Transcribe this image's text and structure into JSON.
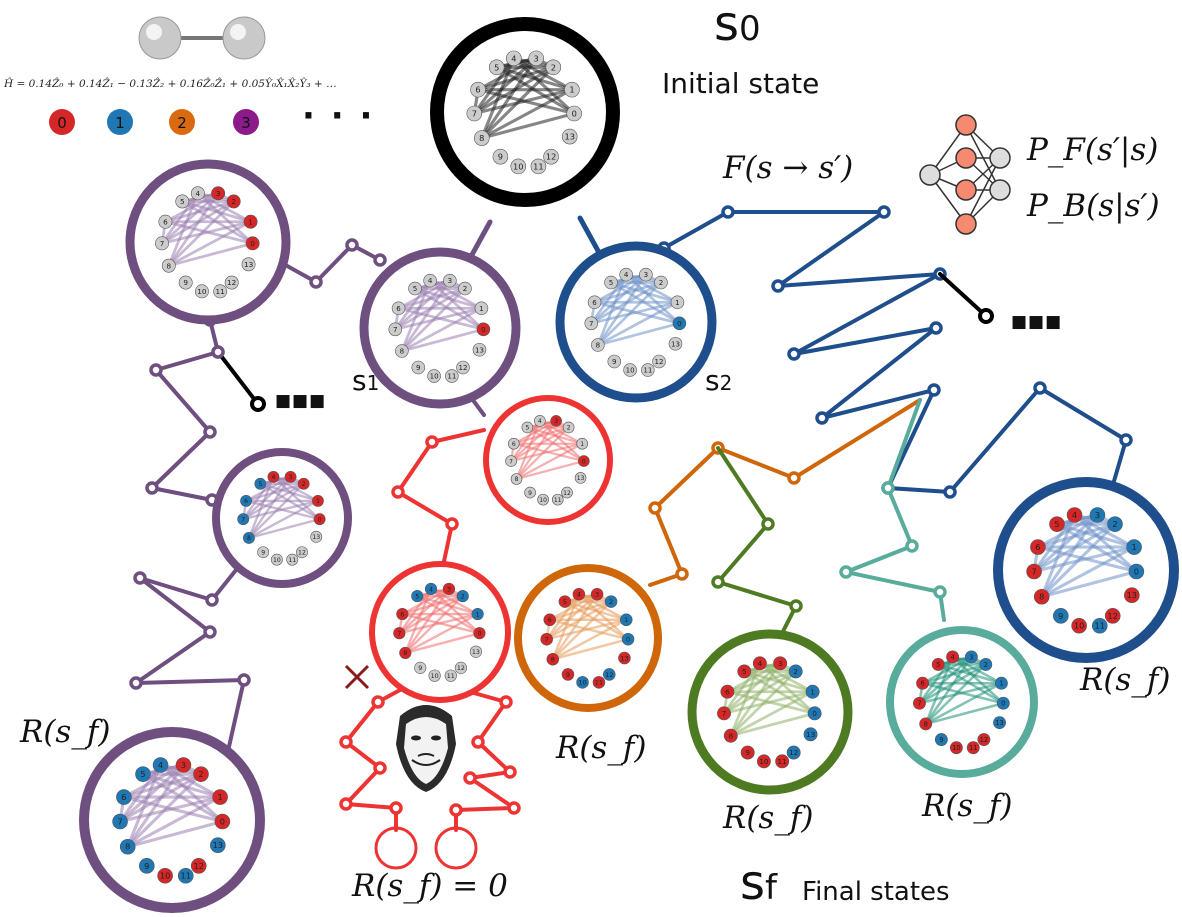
{
  "labels": {
    "s0": "s",
    "s0_sub": "0",
    "initial_state": "Initial state",
    "s1": "s",
    "s1_sub": "1",
    "s2": "s",
    "s2_sub": "2",
    "sf": "s",
    "sf_sub": "f",
    "final_states": "Final states",
    "flow": "F(s → s′)",
    "pf": "P_F(s′|s)",
    "pb": "P_B(s|s′)",
    "reward": "R(s_f)",
    "reward_zero": "R(s_f) = 0",
    "hamiltonian": "Ĥ = 0.14Ẑ₀ + 0.14Ẑ₁ − 0.13Ẑ₂ + 0.16Ẑ₀Ẑ₁ + 0.05Ŷ₀X̂₁X̂₂Ŷ₃ + …",
    "ellipsis": "■■■",
    "dots_legend": "· · ·"
  },
  "legend": [
    {
      "label": "0",
      "color": "#d62728"
    },
    {
      "label": "1",
      "color": "#1f77b4"
    },
    {
      "label": "2",
      "color": "#d96a12"
    },
    {
      "label": "3",
      "color": "#8b1a8b"
    }
  ],
  "colors": {
    "initial": "#000000",
    "purple": "#6e4f7f",
    "blue": "#1f4e8c",
    "red": "#ee3333",
    "orange": "#d0660a",
    "green": "#4e7b22",
    "teal": "#59ab9c",
    "red_node": "#d62728",
    "blue_node": "#1f77b4",
    "gray_node": "#cccccc"
  },
  "graph_nodes": [
    "0",
    "1",
    "2",
    "3",
    "4",
    "5",
    "6",
    "7",
    "8",
    "9",
    "10",
    "11",
    "12",
    "13"
  ]
}
